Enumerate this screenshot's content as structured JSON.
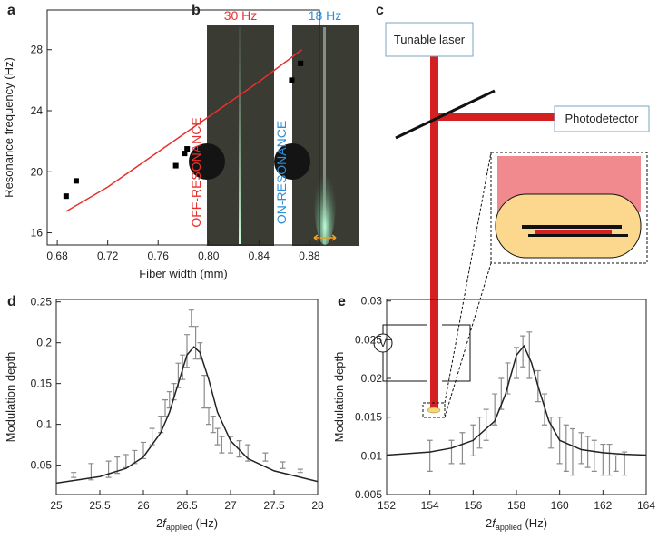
{
  "chart_data": [
    {
      "panel": "a",
      "type": "scatter",
      "xlabel": "Fiber width (mm)",
      "ylabel": "Resonance frequency (Hz)",
      "xlim": [
        0.672,
        0.888
      ],
      "ylim": [
        15.2,
        30.6
      ],
      "xticks": [
        0.68,
        0.72,
        0.76,
        {
          "value": 0.8,
          "label": "0.80"
        },
        0.84,
        0.88
      ],
      "yticks": [
        16,
        20,
        24,
        28
      ],
      "series": [
        {
          "type": "scatter",
          "color": "#000000",
          "x": [
            0.687,
            0.695,
            0.774,
            0.781,
            0.783,
            0.866,
            0.873
          ],
          "values": [
            18.4,
            19.4,
            20.4,
            21.2,
            21.5,
            26.0,
            27.1
          ]
        },
        {
          "type": "line",
          "color": "#e8312f",
          "x": [
            0.687,
            0.72,
            0.76,
            0.8,
            0.84,
            0.874
          ],
          "values": [
            17.4,
            19.0,
            21.3,
            23.6,
            25.9,
            28.0
          ]
        }
      ]
    },
    {
      "panel": "d",
      "type": "scatter",
      "xlabel": [
        "2",
        "f",
        "applied",
        " (Hz)"
      ],
      "ylabel": "Modulation depth",
      "xlim": [
        25,
        28
      ],
      "ylim": [
        0.014,
        0.253
      ],
      "xticks": [
        25,
        25.5,
        26,
        26.5,
        27,
        27.5,
        28
      ],
      "yticks": [
        0.05,
        0.1,
        0.15,
        0.2,
        0.25
      ],
      "series": [
        {
          "type": "errorbar",
          "color": "#8c8c8c",
          "x": [
            25.2,
            25.4,
            25.6,
            25.7,
            25.8,
            25.9,
            26.0,
            26.1,
            26.2,
            26.25,
            26.3,
            26.35,
            26.4,
            26.45,
            26.5,
            26.55,
            26.6,
            26.65,
            26.7,
            26.75,
            26.8,
            26.85,
            26.9,
            27.0,
            27.1,
            27.2,
            27.4,
            27.6,
            27.8
          ],
          "values": [
            0.038,
            0.042,
            0.045,
            0.05,
            0.055,
            0.06,
            0.068,
            0.085,
            0.1,
            0.12,
            0.13,
            0.14,
            0.16,
            0.17,
            0.19,
            0.23,
            0.2,
            0.19,
            0.14,
            0.11,
            0.1,
            0.085,
            0.075,
            0.075,
            0.07,
            0.065,
            0.06,
            0.05,
            0.043
          ],
          "errors": [
            0.003,
            0.01,
            0.01,
            0.01,
            0.008,
            0.008,
            0.01,
            0.01,
            0.01,
            0.01,
            0.01,
            0.01,
            0.015,
            0.015,
            0.02,
            0.01,
            0.02,
            0.01,
            0.02,
            0.01,
            0.01,
            0.01,
            0.01,
            0.01,
            0.01,
            0.01,
            0.005,
            0.004,
            0.002
          ]
        },
        {
          "type": "line",
          "color": "#222222",
          "x": [
            25,
            25.5,
            25.8,
            26,
            26.2,
            26.3,
            26.4,
            26.5,
            26.58,
            26.65,
            26.75,
            26.85,
            27,
            27.2,
            27.5,
            28
          ],
          "values": [
            0.028,
            0.036,
            0.046,
            0.06,
            0.09,
            0.115,
            0.15,
            0.185,
            0.195,
            0.188,
            0.155,
            0.115,
            0.08,
            0.058,
            0.043,
            0.03
          ]
        }
      ]
    },
    {
      "panel": "e",
      "type": "scatter",
      "xlabel": [
        "2",
        "f",
        "applied",
        " (Hz)"
      ],
      "ylabel": "Modulation depth",
      "xlim": [
        152,
        164
      ],
      "ylim": [
        0.005,
        0.0302
      ],
      "xticks": [
        152,
        154,
        156,
        158,
        160,
        162,
        164
      ],
      "yticks": [
        0.005,
        0.01,
        0.015,
        0.02,
        0.025,
        0.03
      ],
      "series": [
        {
          "type": "errorbar",
          "color": "#8c8c8c",
          "x": [
            154,
            155,
            155.5,
            156,
            156.3,
            156.6,
            157,
            157.3,
            157.6,
            158,
            158.3,
            158.6,
            159,
            159.3,
            159.6,
            160,
            160.3,
            160.6,
            161,
            161.3,
            161.6,
            162,
            162.3,
            162.6,
            163
          ],
          "values": [
            0.01,
            0.0105,
            0.011,
            0.012,
            0.013,
            0.014,
            0.016,
            0.018,
            0.02,
            0.022,
            0.0235,
            0.023,
            0.019,
            0.016,
            0.013,
            0.012,
            0.011,
            0.0105,
            0.011,
            0.0105,
            0.01,
            0.0095,
            0.0095,
            0.009,
            0.009
          ],
          "errors": [
            0.002,
            0.0015,
            0.002,
            0.002,
            0.002,
            0.002,
            0.002,
            0.002,
            0.002,
            0.002,
            0.002,
            0.003,
            0.002,
            0.002,
            0.002,
            0.003,
            0.003,
            0.003,
            0.002,
            0.002,
            0.002,
            0.002,
            0.002,
            0.001,
            0.0015
          ]
        },
        {
          "type": "line",
          "color": "#222222",
          "x": [
            152,
            154,
            155,
            156,
            157,
            157.5,
            158,
            158.35,
            158.7,
            159,
            159.5,
            160,
            161,
            162,
            163,
            164
          ],
          "values": [
            0.0101,
            0.0105,
            0.011,
            0.012,
            0.0145,
            0.018,
            0.023,
            0.0242,
            0.022,
            0.019,
            0.0145,
            0.012,
            0.0108,
            0.0104,
            0.0102,
            0.0101
          ]
        }
      ]
    }
  ],
  "panel_b": {
    "panel": "b",
    "left_frequency": "30 Hz",
    "right_frequency": "18 Hz",
    "left_state": "OFF-RESONANCE",
    "right_state": "ON-RESONANCE"
  },
  "panel_c": {
    "panel": "c",
    "laser": "Tunable laser",
    "detector": "Photodetector",
    "voltage": "V"
  }
}
